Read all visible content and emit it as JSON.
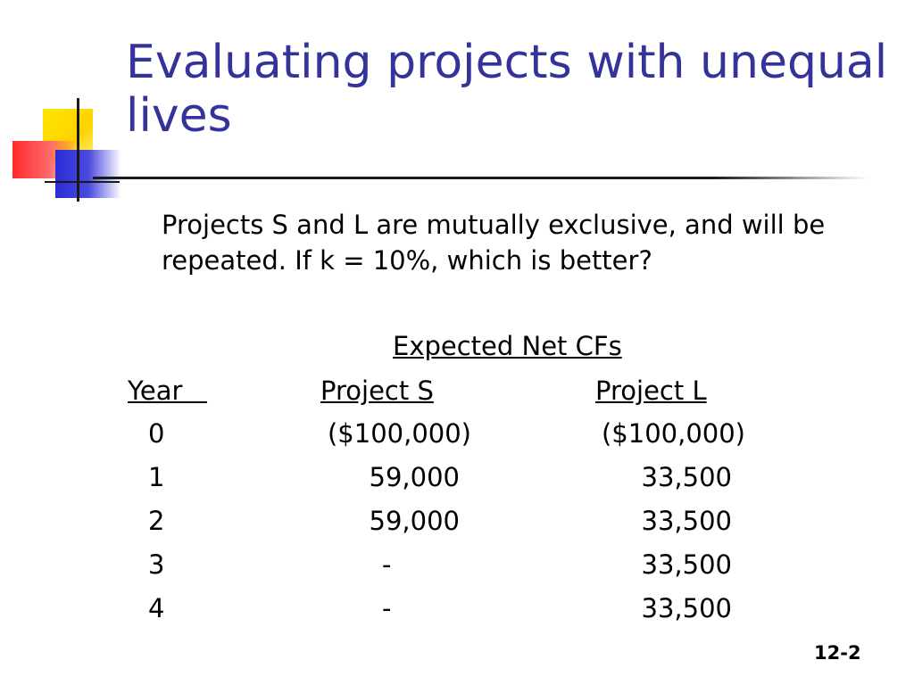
{
  "slide": {
    "title": "Evaluating projects with unequal lives",
    "intro": "Projects S and L are mutually exclusive, and will be repeated.  If k = 10%, which is better?",
    "table": {
      "group_header": "Expected Net CFs",
      "columns": [
        "Year   ",
        "Project S",
        "Project L"
      ],
      "rows": [
        [
          "0",
          "($100,000)",
          "($100,000)"
        ],
        [
          "1",
          "59,000",
          "33,500"
        ],
        [
          "2",
          "59,000",
          "33,500"
        ],
        [
          "3",
          "-",
          "33,500"
        ],
        [
          "4",
          "-",
          "33,500"
        ]
      ]
    },
    "slide_number": "12-2"
  },
  "colors": {
    "title": "#333399",
    "text": "#000000",
    "deco_yellow": "#ffe600",
    "deco_red": "#ff2a2a",
    "deco_blue": "#2b2bd6"
  }
}
